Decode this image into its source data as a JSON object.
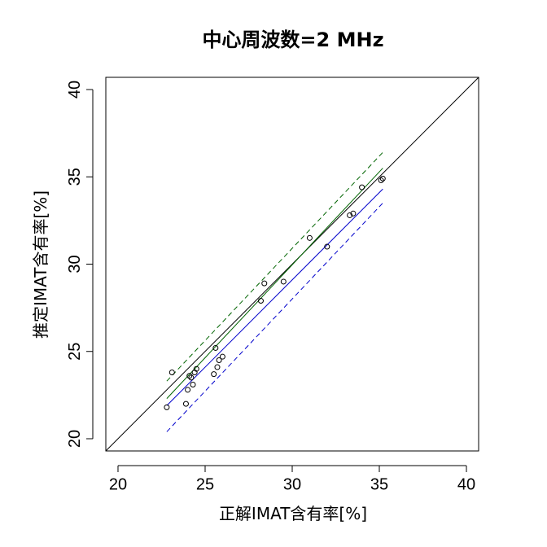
{
  "chart_data": {
    "type": "scatter",
    "title": "中心周波数=2 MHz",
    "xlabel": "正解IMAT含有率[%]",
    "ylabel": "推定IMAT含有率[%]",
    "xlim": [
      19.3,
      40.7
    ],
    "ylim": [
      19.3,
      40.7
    ],
    "x_ticks": [
      20,
      25,
      30,
      35,
      40
    ],
    "y_ticks": [
      20,
      25,
      30,
      35,
      40
    ],
    "grid": false,
    "colors": {
      "axes": "#000000",
      "points": "#000000",
      "identity": "#000000",
      "upper": "#006400",
      "lower": "#0000cc"
    },
    "points": [
      [
        22.8,
        21.8
      ],
      [
        23.1,
        23.8
      ],
      [
        23.9,
        22.0
      ],
      [
        24.0,
        22.8
      ],
      [
        24.1,
        23.6
      ],
      [
        24.2,
        23.5
      ],
      [
        24.3,
        23.1
      ],
      [
        24.4,
        23.8
      ],
      [
        24.5,
        24.0
      ],
      [
        25.5,
        23.7
      ],
      [
        25.6,
        25.2
      ],
      [
        25.7,
        24.1
      ],
      [
        25.8,
        24.5
      ],
      [
        26.0,
        24.7
      ],
      [
        28.2,
        27.9
      ],
      [
        28.4,
        28.9
      ],
      [
        29.5,
        29.0
      ],
      [
        31.0,
        31.5
      ],
      [
        32.0,
        31.0
      ],
      [
        33.3,
        32.8
      ],
      [
        33.5,
        32.9
      ],
      [
        34.0,
        34.4
      ],
      [
        35.1,
        34.8
      ],
      [
        35.2,
        34.9
      ]
    ],
    "identity_line": {
      "x": [
        19.3,
        40.7
      ],
      "y": [
        19.3,
        40.7
      ]
    },
    "fit_lines": [
      {
        "style": "solid",
        "color": "#006400",
        "x": [
          22.8,
          35.2
        ],
        "y": [
          22.3,
          35.5
        ]
      },
      {
        "style": "solid",
        "color": "#0000cc",
        "x": [
          22.8,
          35.2
        ],
        "y": [
          21.9,
          34.3
        ]
      },
      {
        "style": "dashed",
        "color": "#006400",
        "x": [
          22.8,
          35.2
        ],
        "y": [
          23.3,
          36.4
        ]
      },
      {
        "style": "dashed",
        "color": "#0000cc",
        "x": [
          22.8,
          35.2
        ],
        "y": [
          20.4,
          33.5
        ]
      }
    ]
  }
}
